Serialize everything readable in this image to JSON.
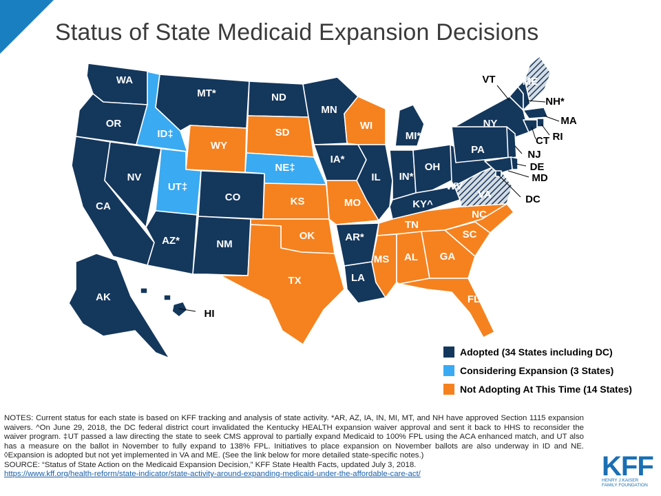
{
  "page": {
    "title": "Status of State Medicaid Expansion Decisions"
  },
  "colors": {
    "adopted": "#14375c",
    "considering": "#3aaaf2",
    "not_adopting": "#f5821f",
    "accent": "#1a7fc1"
  },
  "legend": {
    "adopted": "Adopted (34 States including DC)",
    "considering": "Considering Expansion (3 States)",
    "not_adopting": "Not Adopting At This Time (14 States)"
  },
  "map_data": {
    "states": [
      {
        "abbr": "WA",
        "label": "WA",
        "status": "adopted"
      },
      {
        "abbr": "OR",
        "label": "OR",
        "status": "adopted"
      },
      {
        "abbr": "CA",
        "label": "CA",
        "status": "adopted"
      },
      {
        "abbr": "NV",
        "label": "NV",
        "status": "adopted"
      },
      {
        "abbr": "ID",
        "label": "ID‡",
        "status": "considering"
      },
      {
        "abbr": "MT",
        "label": "MT*",
        "status": "adopted"
      },
      {
        "abbr": "WY",
        "label": "WY",
        "status": "not_adopting"
      },
      {
        "abbr": "UT",
        "label": "UT‡",
        "status": "considering"
      },
      {
        "abbr": "AZ",
        "label": "AZ*",
        "status": "adopted"
      },
      {
        "abbr": "CO",
        "label": "CO",
        "status": "adopted"
      },
      {
        "abbr": "NM",
        "label": "NM",
        "status": "adopted"
      },
      {
        "abbr": "ND",
        "label": "ND",
        "status": "adopted"
      },
      {
        "abbr": "SD",
        "label": "SD",
        "status": "not_adopting"
      },
      {
        "abbr": "NE",
        "label": "NE‡",
        "status": "considering"
      },
      {
        "abbr": "KS",
        "label": "KS",
        "status": "not_adopting"
      },
      {
        "abbr": "OK",
        "label": "OK",
        "status": "not_adopting"
      },
      {
        "abbr": "TX",
        "label": "TX",
        "status": "not_adopting"
      },
      {
        "abbr": "MN",
        "label": "MN",
        "status": "adopted"
      },
      {
        "abbr": "IA",
        "label": "IA*",
        "status": "adopted"
      },
      {
        "abbr": "MO",
        "label": "MO",
        "status": "not_adopting"
      },
      {
        "abbr": "AR",
        "label": "AR*",
        "status": "adopted"
      },
      {
        "abbr": "LA",
        "label": "LA",
        "status": "adopted"
      },
      {
        "abbr": "WI",
        "label": "WI",
        "status": "not_adopting"
      },
      {
        "abbr": "IL",
        "label": "IL",
        "status": "adopted"
      },
      {
        "abbr": "MI",
        "label": "MI*",
        "status": "adopted"
      },
      {
        "abbr": "IN",
        "label": "IN*",
        "status": "adopted"
      },
      {
        "abbr": "OH",
        "label": "OH",
        "status": "adopted"
      },
      {
        "abbr": "KY",
        "label": "KY^",
        "status": "adopted"
      },
      {
        "abbr": "TN",
        "label": "TN",
        "status": "not_adopting"
      },
      {
        "abbr": "MS",
        "label": "MS",
        "status": "not_adopting"
      },
      {
        "abbr": "AL",
        "label": "AL",
        "status": "not_adopting"
      },
      {
        "abbr": "GA",
        "label": "GA",
        "status": "not_adopting"
      },
      {
        "abbr": "FL",
        "label": "FL",
        "status": "not_adopting"
      },
      {
        "abbr": "SC",
        "label": "SC",
        "status": "not_adopting"
      },
      {
        "abbr": "NC",
        "label": "NC",
        "status": "not_adopting"
      },
      {
        "abbr": "VA",
        "label": "VA",
        "status": "adopted_not_implemented"
      },
      {
        "abbr": "WV",
        "label": "WV",
        "status": "adopted"
      },
      {
        "abbr": "PA",
        "label": "PA",
        "status": "adopted"
      },
      {
        "abbr": "NY",
        "label": "NY",
        "status": "adopted"
      },
      {
        "abbr": "VT",
        "label": "VT",
        "status": "adopted"
      },
      {
        "abbr": "NH",
        "label": "NH*",
        "status": "adopted"
      },
      {
        "abbr": "ME",
        "label": "ME",
        "status": "adopted_not_implemented"
      },
      {
        "abbr": "MA",
        "label": "MA",
        "status": "adopted"
      },
      {
        "abbr": "RI",
        "label": "RI",
        "status": "adopted"
      },
      {
        "abbr": "CT",
        "label": "CT",
        "status": "adopted"
      },
      {
        "abbr": "NJ",
        "label": "NJ",
        "status": "adopted"
      },
      {
        "abbr": "DE",
        "label": "DE",
        "status": "adopted"
      },
      {
        "abbr": "MD",
        "label": "MD",
        "status": "adopted"
      },
      {
        "abbr": "DC",
        "label": "DC",
        "status": "adopted"
      },
      {
        "abbr": "AK",
        "label": "AK",
        "status": "adopted"
      },
      {
        "abbr": "HI",
        "label": "HI",
        "status": "adopted"
      }
    ]
  },
  "notes": {
    "body": "NOTES: Current status for each state is based on KFF tracking and analysis of state activity. *AR, AZ, IA, IN, MI, MT, and NH have approved Section 1115 expansion waivers. ^On June 29, 2018, the DC federal district court invalidated the Kentucky HEALTH expansion waiver approval and sent it back to HHS to reconsider the waiver program. ‡UT passed a law directing the state to seek CMS approval to partially expand Medicaid to 100% FPL using the ACA enhanced match, and UT also has a measure on the ballot in November to fully expand to 138% FPL. Initiatives to place expansion on November ballots are also underway in ID and NE. ◊Expansion is adopted but not yet implemented in VA and ME. (See the link below for more detailed state-specific notes.)",
    "source": "SOURCE: “Status of State Action on the Medicaid Expansion Decision,” KFF State Health Facts, updated July 3, 2018.",
    "link": "https://www.kff.org/health-reform/state-indicator/state-activity-around-expanding-medicaid-under-the-affordable-care-act/"
  },
  "logo": {
    "mark": "KFF",
    "line1": "HENRY J KAISER",
    "line2": "FAMILY FOUNDATION"
  }
}
